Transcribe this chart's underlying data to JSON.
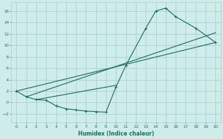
{
  "bg_color": "#ceecea",
  "grid_color": "#aacfcc",
  "line_color": "#1e6e60",
  "xlabel": "Humidex (Indice chaleur)",
  "xlim": [
    -0.5,
    20.5
  ],
  "ylim": [
    -3.5,
    17.5
  ],
  "xticks": [
    0,
    1,
    2,
    3,
    4,
    5,
    6,
    7,
    8,
    9,
    10,
    11,
    12,
    13,
    14,
    15,
    16,
    17,
    18,
    19,
    20
  ],
  "yticks": [
    -2,
    0,
    2,
    4,
    6,
    8,
    10,
    12,
    14,
    16
  ],
  "curve_x": [
    0,
    1,
    2,
    3,
    4,
    5,
    6,
    7,
    8,
    9,
    10,
    11,
    13,
    14,
    15,
    16,
    18,
    20
  ],
  "curve_y": [
    2.0,
    1.0,
    0.5,
    0.4,
    -0.6,
    -1.1,
    -1.3,
    -1.5,
    -1.6,
    -1.7,
    2.7,
    6.5,
    13.0,
    16.0,
    16.5,
    15.0,
    13.0,
    10.5
  ],
  "line2_x": [
    0,
    20
  ],
  "line2_y": [
    2.0,
    10.5
  ],
  "line3_x": [
    1,
    20
  ],
  "line3_y": [
    1.0,
    12.2
  ],
  "line4_x": [
    2,
    10
  ],
  "line4_y": [
    0.5,
    3.0
  ]
}
